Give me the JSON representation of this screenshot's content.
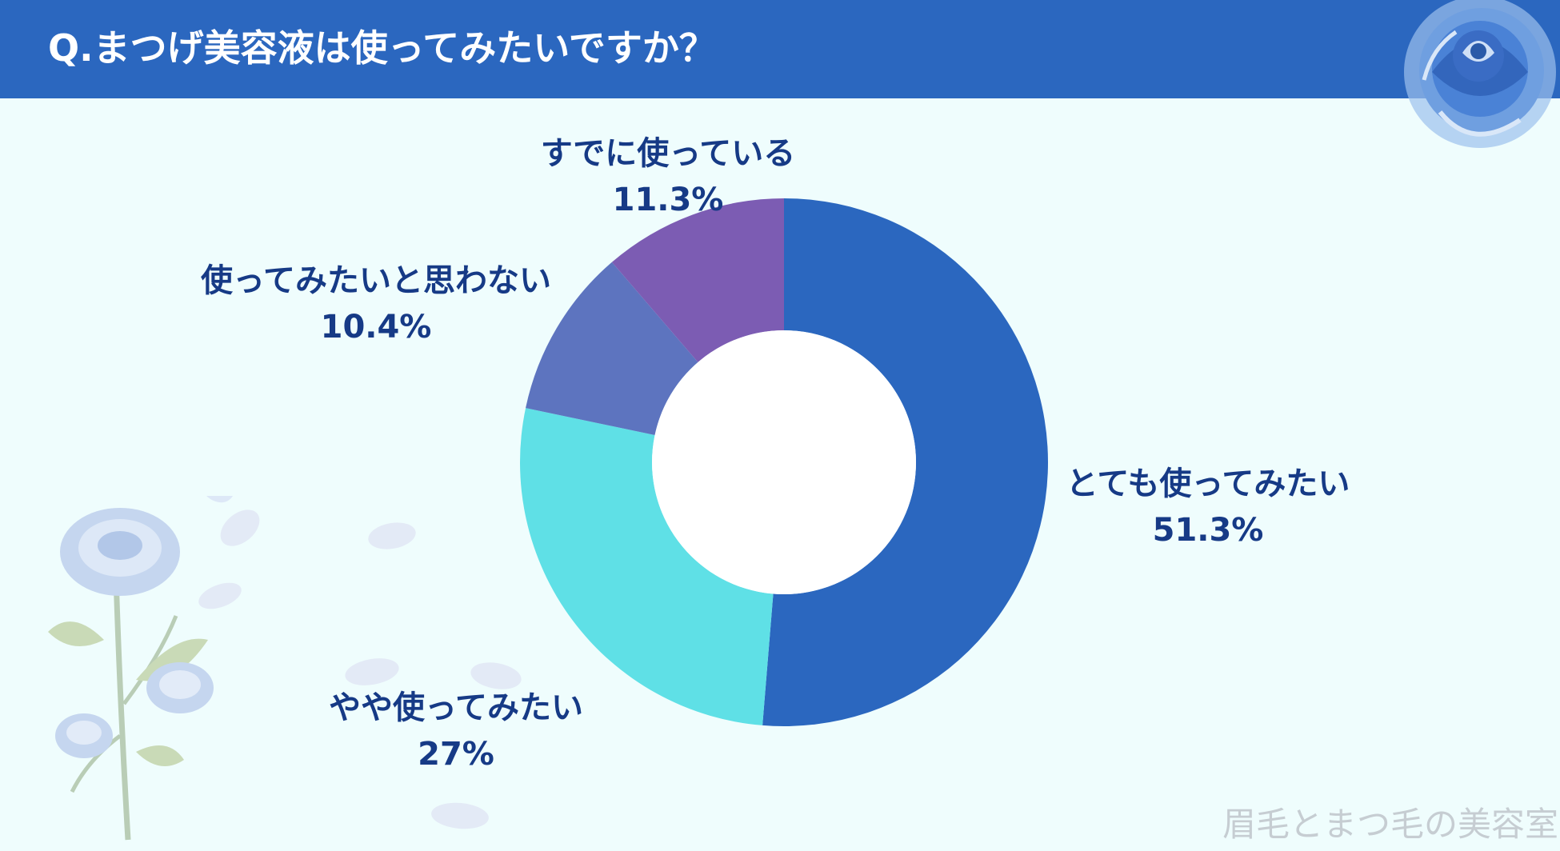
{
  "title": "Q.まつげ美容液は使ってみたいですか？",
  "watermark": "眉毛とまつ毛の美容室",
  "colors": {
    "header": "#2b67bf",
    "background": "#effdfd",
    "label_text": "#163a86"
  },
  "chart_data": {
    "type": "pie",
    "title": "Q.まつげ美容液は使ってみたいですか？",
    "donut": true,
    "start": "top",
    "direction": "clockwise",
    "categories": [
      "とても使ってみたい",
      "やや使ってみたい",
      "使ってみたいと思わない",
      "すでに使っている"
    ],
    "values": [
      51.3,
      27,
      10.4,
      11.3
    ],
    "value_labels": [
      "51.3%",
      "27%",
      "10.4%",
      "11.3%"
    ],
    "colors": [
      "#2b67bf",
      "#5fe0e6",
      "#5d74bf",
      "#7c5cb3"
    ]
  }
}
